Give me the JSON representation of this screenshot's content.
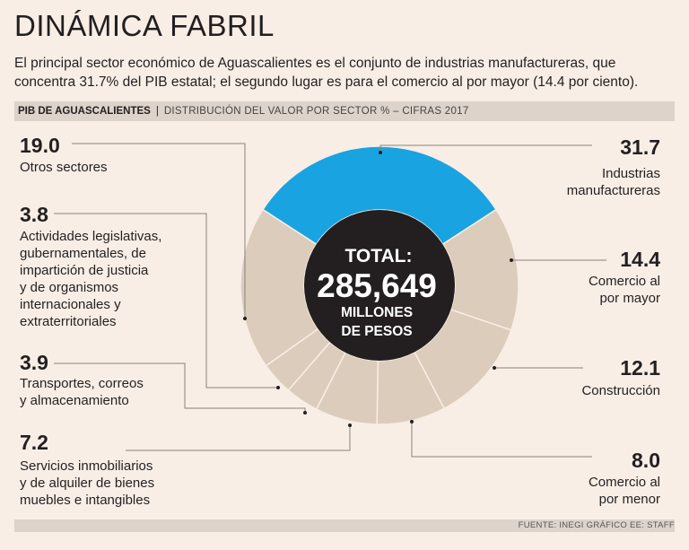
{
  "header": {
    "title": "DINÁMICA FABRIL",
    "subtitle": "El principal sector económico de Aguascalientes es el conjunto de industrias manufactureras, que concentra 31.7% del PIB estatal; el segundo lugar es para el comercio al por mayor (14.4 por ciento).",
    "bar_main": "PIB DE AGUASCALIENTES",
    "bar_sep": "|",
    "bar_sub": "DISTRIBUCIÓN DEL VALOR POR SECTOR % – CIFRAS 2017"
  },
  "source": "FUENTE: INEGI GRÁFICO EE: STAFF",
  "center": {
    "line1": "TOTAL:",
    "line2": "285,649",
    "line3": "MILLONES",
    "line4": "DE PESOS"
  },
  "colors": {
    "highlight": "#1aa3e1",
    "segment": "#dcccbc",
    "center": "#231f20",
    "background": "#f8eee6"
  },
  "chart_data": {
    "type": "pie",
    "title": "PIB DE AGUASCALIENTES",
    "unit": "%",
    "slices": [
      {
        "name": "Industrias manufactureras",
        "lines": [
          "Industrias",
          "manufactureras"
        ],
        "value": 31.7,
        "value_label": "31.7",
        "highlight": true
      },
      {
        "name": "Comercio al por mayor",
        "lines": [
          "Comercio al",
          "por mayor"
        ],
        "value": 14.4,
        "value_label": "14.4",
        "highlight": false
      },
      {
        "name": "Construcción",
        "lines": [
          "Construcción"
        ],
        "value": 12.1,
        "value_label": "12.1",
        "highlight": false
      },
      {
        "name": "Comercio al por menor",
        "lines": [
          "Comercio al",
          "por menor"
        ],
        "value": 8.0,
        "value_label": "8.0",
        "highlight": false
      },
      {
        "name": "Servicios inmobiliarios y de alquiler de bienes muebles e intangibles",
        "lines": [
          "Servicios inmobiliarios",
          "y de alquiler de bienes",
          "muebles e intangibles"
        ],
        "value": 7.2,
        "value_label": "7.2",
        "highlight": false
      },
      {
        "name": "Transportes, correos y almacenamiento",
        "lines": [
          "Transportes, correos",
          "y almacenamiento"
        ],
        "value": 3.9,
        "value_label": "3.9",
        "highlight": false
      },
      {
        "name": "Actividades legislativas, gubernamentales, de impartición de justicia y de organismos internacionales y extraterritoriales",
        "lines": [
          "Actividades legislativas,",
          "gubernamentales, de",
          "impartición de justicia",
          "y de organismos",
          "internacionales y",
          "extraterritoriales"
        ],
        "value": 3.8,
        "value_label": "3.8",
        "highlight": false
      },
      {
        "name": "Otros sectores",
        "lines": [
          "Otros sectores"
        ],
        "value": 19.0,
        "value_label": "19.0",
        "highlight": false
      }
    ]
  }
}
